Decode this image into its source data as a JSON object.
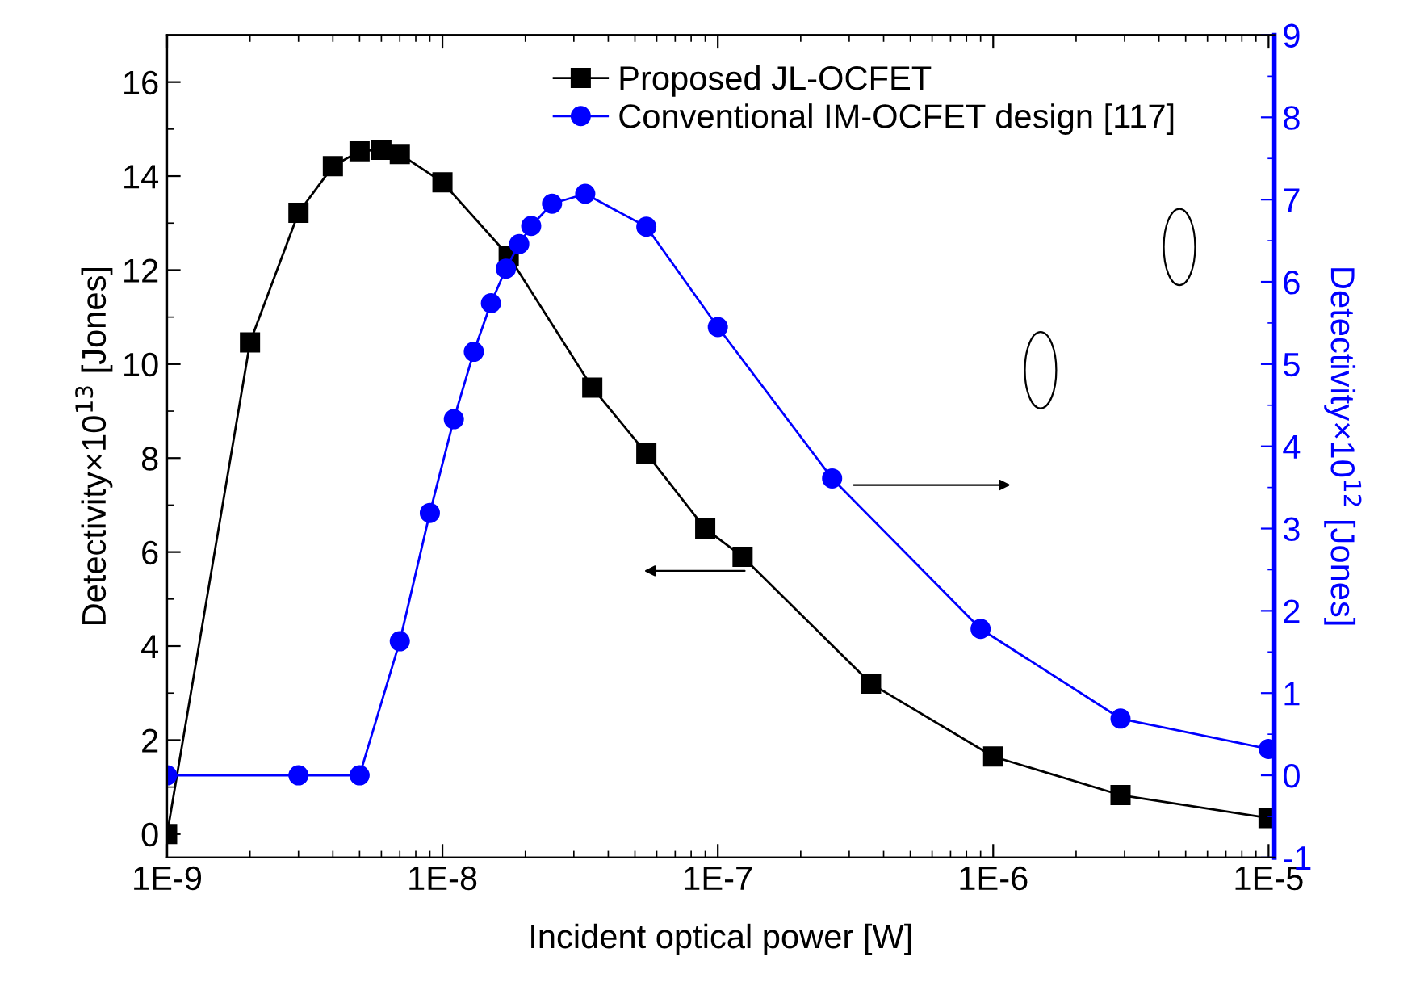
{
  "chart_data": {
    "type": "line",
    "xlabel": "Incident optical power [W]",
    "ylabel": "Detectivity×10$^{13}$ [Jones]",
    "y2label": "Detectivity×10$^{12}$ [Jones]",
    "log": "x",
    "xlim": [
      1e-09,
      1.05e-05
    ],
    "xticks": [
      {
        "value": 1e-09,
        "label": "1E-9"
      },
      {
        "value": 1e-08,
        "label": "1E-8"
      },
      {
        "value": 1e-07,
        "label": "1E-7"
      },
      {
        "value": 1e-06,
        "label": "1E-6"
      },
      {
        "value": 1e-05,
        "label": "1E-5"
      }
    ],
    "ylim": [
      -0.5,
      17
    ],
    "yticks": [
      0,
      2,
      4,
      6,
      8,
      10,
      12,
      14,
      16
    ],
    "y2lim": [
      -1,
      9
    ],
    "y2ticks": [
      -1,
      0,
      1,
      2,
      3,
      4,
      5,
      6,
      7,
      8,
      9
    ],
    "grid": false,
    "legend": "top",
    "line_style": "solid",
    "series": [
      {
        "name": "Proposed JL-OCFET",
        "color": "#000000",
        "marker": "square",
        "x": [
          1e-09,
          2e-09,
          3e-09,
          4e-09,
          5e-09,
          6e-09,
          7e-09,
          1e-08,
          1.74e-08,
          3.5e-08,
          5.5e-08,
          9e-08,
          1.23e-07,
          3.6e-07,
          1e-06,
          2.9e-06,
          1e-05
        ],
        "values": [
          0,
          10.46,
          13.22,
          14.21,
          14.53,
          14.56,
          14.47,
          13.87,
          12.3,
          9.5,
          8.1,
          6.5,
          5.9,
          3.2,
          1.65,
          0.83,
          0.34
        ]
      },
      {
        "name": "Conventional IM-OCFET design [117]",
        "color": "#0000ff",
        "marker": "circle",
        "axis": "y2",
        "x": [
          1e-09,
          3e-09,
          5e-09,
          7e-09,
          9e-09,
          1.1e-08,
          1.3e-08,
          1.5e-08,
          1.7e-08,
          1.9e-08,
          2.1e-08,
          2.5e-08,
          3.3e-08,
          5.5e-08,
          1e-07,
          2.6e-07,
          9e-07,
          2.9e-06,
          1e-05
        ],
        "values": [
          0,
          0,
          0,
          1.63,
          3.19,
          4.33,
          5.15,
          5.74,
          6.16,
          6.46,
          6.68,
          6.95,
          7.07,
          6.67,
          5.45,
          3.61,
          1.78,
          0.69,
          0.32
        ]
      }
    ]
  }
}
